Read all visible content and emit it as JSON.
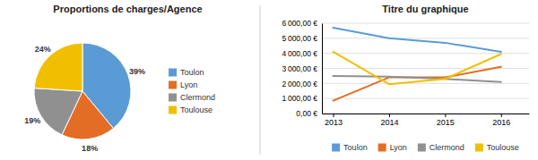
{
  "chart_data": [
    {
      "type": "pie",
      "title": "Proportions de charges/Agence",
      "categories": [
        "Toulon",
        "Lyon",
        "Clermond",
        "Toulouse"
      ],
      "values": [
        39,
        18,
        19,
        24
      ],
      "value_labels": [
        "39%",
        "18%",
        "19%",
        "24%"
      ],
      "colors": [
        "#5b9bd5",
        "#e36d25",
        "#909090",
        "#f0c000"
      ],
      "data_labels": true,
      "legend": "right"
    },
    {
      "type": "line",
      "title": "Titre du graphique",
      "x": [
        2013,
        2014,
        2015,
        2016
      ],
      "xlim": [
        2012.8,
        2016.5
      ],
      "xticks": [
        2013,
        2014,
        2015,
        2016
      ],
      "ylim": [
        0,
        6000
      ],
      "yticks": [
        {
          "value": 0,
          "label": "0,00 €"
        },
        {
          "value": 1000,
          "label": "1 000,00 €"
        },
        {
          "value": 2000,
          "label": "2 000,00 €"
        },
        {
          "value": 3000,
          "label": "3 000,00 €"
        },
        {
          "value": 4000,
          "label": "4 000,00 €"
        },
        {
          "value": 5000,
          "label": "5 000,00 €"
        },
        {
          "value": 6000,
          "label": "6 000,00 €"
        }
      ],
      "grid": true,
      "legend": "bottom",
      "series": [
        {
          "name": "Toulon",
          "color": "#5b9bd5",
          "values": [
            5700,
            5000,
            4700,
            4100
          ]
        },
        {
          "name": "Lyon",
          "color": "#e36d25",
          "values": [
            850,
            2400,
            2400,
            3100
          ]
        },
        {
          "name": "Clermond",
          "color": "#909090",
          "values": [
            2500,
            2450,
            2300,
            2100
          ]
        },
        {
          "name": "Toulouse",
          "color": "#f0c000",
          "values": [
            4100,
            1950,
            2300,
            3950
          ]
        }
      ]
    }
  ]
}
